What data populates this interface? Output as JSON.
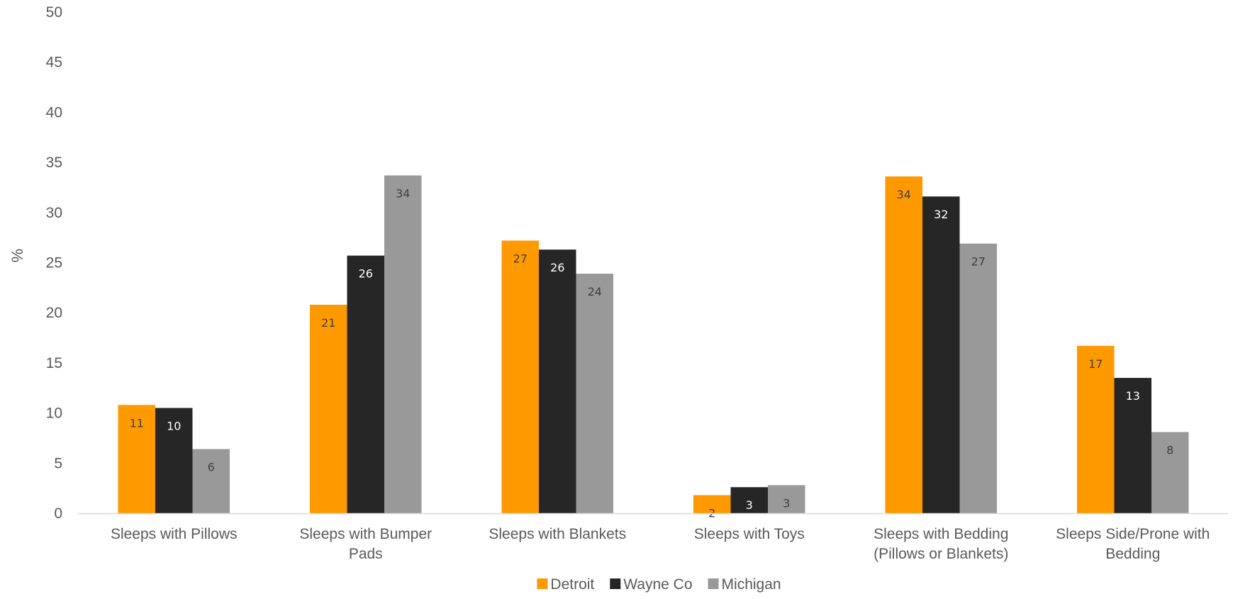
{
  "chart_data": {
    "type": "bar",
    "categories": [
      [
        "Sleeps with Pillows"
      ],
      [
        "Sleeps with Bumper",
        "Pads"
      ],
      [
        "Sleeps with Blankets"
      ],
      [
        "Sleeps with Toys"
      ],
      [
        "Sleeps with Bedding",
        "(Pillows or Blankets)"
      ],
      [
        "Sleeps Side/Prone with",
        "Bedding"
      ]
    ],
    "series": [
      {
        "name": "Detroit",
        "color": "#FF9900",
        "label_color": "#404040",
        "values": [
          10.8,
          20.8,
          27.2,
          1.8,
          33.6,
          16.7
        ],
        "labels": [
          "11",
          "21",
          "27",
          "2",
          "34",
          "17"
        ]
      },
      {
        "name": "Wayne Co",
        "color": "#262626",
        "label_color": "#FFFFFF",
        "values": [
          10.5,
          25.7,
          26.3,
          2.6,
          31.6,
          13.5
        ],
        "labels": [
          "10",
          "26",
          "26",
          "3",
          "32",
          "13"
        ]
      },
      {
        "name": "Michigan",
        "color": "#999999",
        "label_color": "#404040",
        "values": [
          6.4,
          33.7,
          23.9,
          2.8,
          26.9,
          8.1
        ],
        "labels": [
          "6",
          "34",
          "24",
          "3",
          "27",
          "8"
        ]
      }
    ],
    "title": "",
    "xlabel": "",
    "ylabel": "%",
    "ylim": [
      0,
      50
    ],
    "yticks": [
      0,
      5,
      10,
      15,
      20,
      25,
      30,
      35,
      40,
      45,
      50
    ],
    "grid": false,
    "legend_position": "bottom",
    "axis_line_color": "#D9D9D9"
  }
}
